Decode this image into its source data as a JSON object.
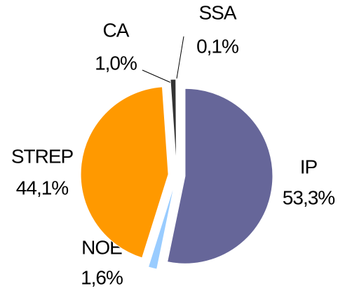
{
  "chart_data": {
    "type": "pie",
    "categories": [
      "IP",
      "NOE",
      "STREP",
      "CA",
      "SSA"
    ],
    "values": [
      53.3,
      1.6,
      44.1,
      1.0,
      0.1
    ],
    "value_labels": [
      "53,3%",
      "1,6%",
      "44,1%",
      "1,0%",
      "0,1%"
    ],
    "colors": [
      "#666699",
      "#99ccff",
      "#ff9900",
      "#333333",
      "#111111"
    ]
  }
}
